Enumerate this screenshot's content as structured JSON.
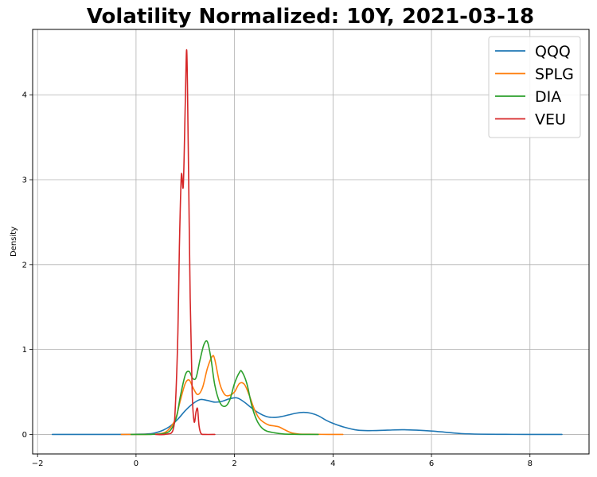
{
  "chart_data": {
    "type": "line",
    "title": "Volatility Normalized: 10Y, 2021-03-18",
    "xlabel": "",
    "ylabel": "Density",
    "xlim": [
      -2.1,
      9.2
    ],
    "ylim": [
      -0.23,
      4.77
    ],
    "xticks": [
      -2,
      0,
      2,
      4,
      6,
      8
    ],
    "yticks": [
      0,
      1,
      2,
      3,
      4
    ],
    "xtick_labels": [
      "−2",
      "0",
      "2",
      "4",
      "6",
      "8"
    ],
    "ytick_labels": [
      "0",
      "1",
      "2",
      "3",
      "4"
    ],
    "grid": true,
    "legend_position": "top-right",
    "series": [
      {
        "name": "QQQ",
        "color": "#1f77b4",
        "x": [
          -1.7,
          -0.5,
          0.2,
          0.4,
          0.55,
          0.7,
          0.85,
          1.0,
          1.15,
          1.3,
          1.45,
          1.6,
          1.75,
          1.9,
          2.05,
          2.2,
          2.35,
          2.5,
          2.65,
          2.8,
          2.95,
          3.1,
          3.25,
          3.4,
          3.55,
          3.7,
          3.85,
          4.0,
          4.2,
          4.5,
          4.8,
          5.1,
          5.4,
          5.7,
          6.0,
          6.3,
          6.6,
          7.0,
          7.5,
          8.0,
          8.65
        ],
        "y": [
          0,
          0,
          0.005,
          0.02,
          0.05,
          0.1,
          0.18,
          0.28,
          0.36,
          0.41,
          0.4,
          0.38,
          0.39,
          0.42,
          0.43,
          0.38,
          0.31,
          0.25,
          0.21,
          0.2,
          0.21,
          0.23,
          0.25,
          0.26,
          0.25,
          0.22,
          0.17,
          0.13,
          0.09,
          0.05,
          0.045,
          0.05,
          0.055,
          0.05,
          0.04,
          0.025,
          0.01,
          0.003,
          0.001,
          0,
          0
        ]
      },
      {
        "name": "SPLG",
        "color": "#ff7f0e",
        "x": [
          -0.3,
          0.2,
          0.5,
          0.65,
          0.8,
          0.9,
          1.0,
          1.08,
          1.15,
          1.25,
          1.35,
          1.45,
          1.55,
          1.6,
          1.7,
          1.8,
          1.9,
          2.0,
          2.1,
          2.2,
          2.3,
          2.4,
          2.5,
          2.6,
          2.7,
          2.8,
          2.9,
          3.0,
          3.15,
          3.3,
          3.5,
          3.7,
          3.9,
          4.2
        ],
        "y": [
          0,
          0,
          0.01,
          0.05,
          0.18,
          0.4,
          0.6,
          0.64,
          0.56,
          0.47,
          0.55,
          0.78,
          0.92,
          0.88,
          0.6,
          0.47,
          0.46,
          0.5,
          0.6,
          0.59,
          0.46,
          0.3,
          0.19,
          0.14,
          0.11,
          0.1,
          0.09,
          0.06,
          0.02,
          0.005,
          0.002,
          0.001,
          0,
          0
        ]
      },
      {
        "name": "DIA",
        "color": "#2ca02c",
        "x": [
          -0.1,
          0.3,
          0.55,
          0.7,
          0.82,
          0.9,
          1.0,
          1.08,
          1.15,
          1.22,
          1.3,
          1.38,
          1.45,
          1.52,
          1.6,
          1.7,
          1.8,
          1.9,
          2.0,
          2.1,
          2.15,
          2.25,
          2.35,
          2.45,
          2.55,
          2.65,
          2.8,
          3.0,
          3.2,
          3.4,
          3.7
        ],
        "y": [
          0,
          0,
          0.01,
          0.05,
          0.2,
          0.45,
          0.7,
          0.74,
          0.66,
          0.67,
          0.88,
          1.06,
          1.09,
          0.9,
          0.58,
          0.38,
          0.33,
          0.4,
          0.6,
          0.73,
          0.74,
          0.6,
          0.34,
          0.17,
          0.08,
          0.04,
          0.02,
          0.005,
          0.002,
          0,
          0
        ]
      },
      {
        "name": "VEU",
        "color": "#d62728",
        "x": [
          0.4,
          0.6,
          0.75,
          0.8,
          0.85,
          0.88,
          0.92,
          0.96,
          1.0,
          1.03,
          1.06,
          1.1,
          1.14,
          1.18,
          1.22,
          1.25,
          1.28,
          1.32,
          1.4,
          1.6
        ],
        "y": [
          0,
          0.002,
          0.05,
          0.35,
          1.2,
          2.2,
          3.05,
          2.93,
          3.9,
          4.52,
          3.4,
          1.6,
          0.5,
          0.15,
          0.27,
          0.3,
          0.1,
          0.01,
          0,
          0
        ]
      }
    ]
  }
}
